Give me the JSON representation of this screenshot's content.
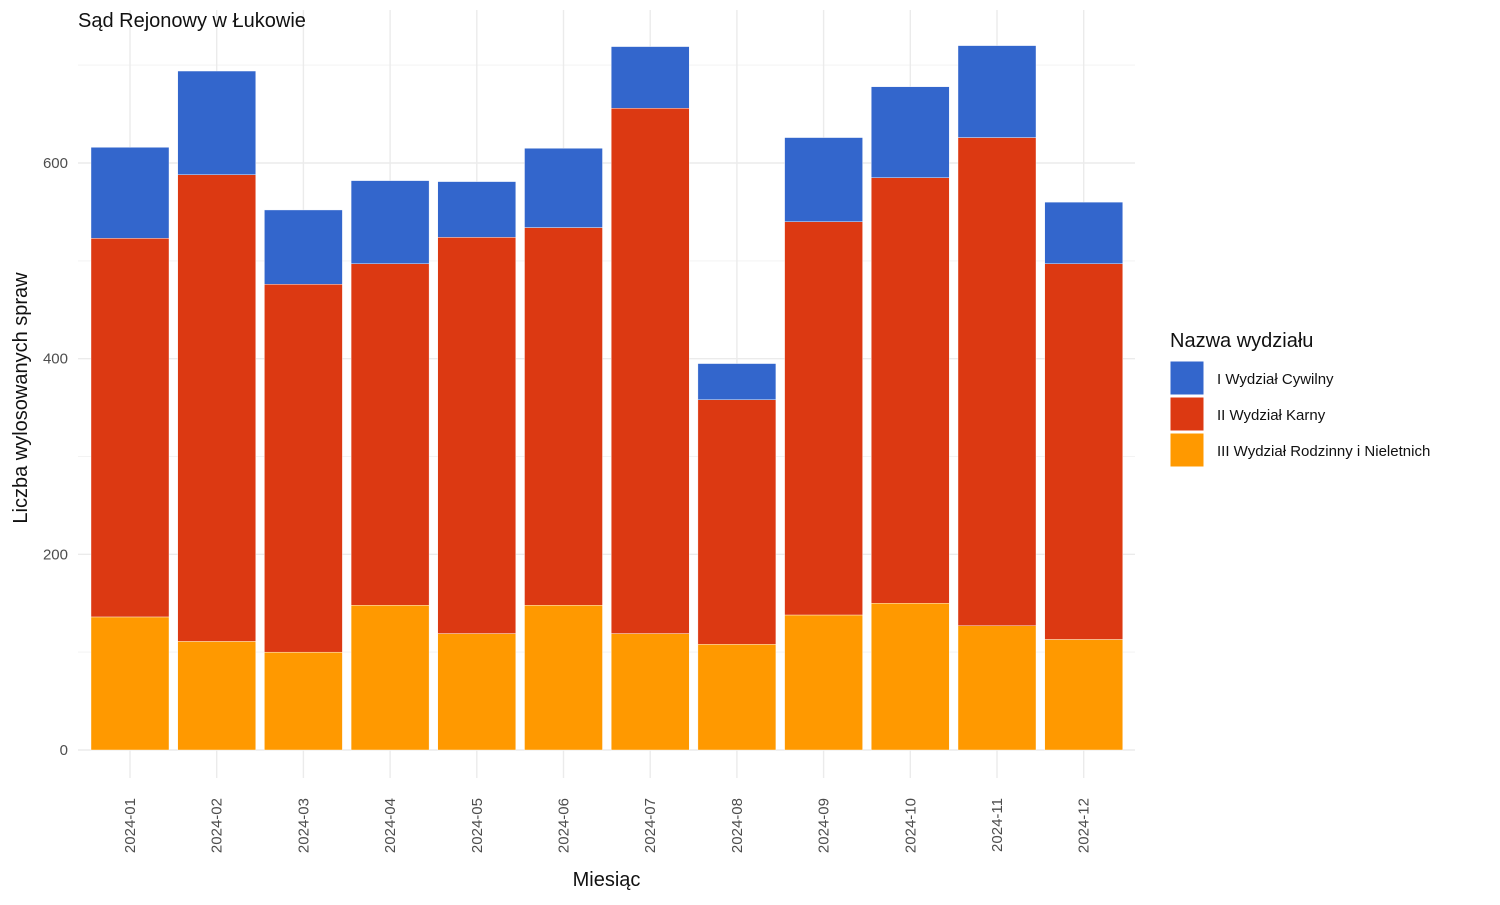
{
  "chart_data": {
    "type": "bar",
    "stacked": true,
    "title": "Sąd Rejonowy w Łukowie",
    "xlabel": "Miesiąc",
    "ylabel": "Liczba wylosowanych spraw",
    "ylim": [
      0,
      720
    ],
    "yticks": [
      0,
      200,
      400,
      600
    ],
    "grid": true,
    "legend": {
      "title": "Nazwa wydziału",
      "position": "right"
    },
    "categories": [
      "2024-01",
      "2024-02",
      "2024-03",
      "2024-04",
      "2024-05",
      "2024-06",
      "2024-07",
      "2024-08",
      "2024-09",
      "2024-10",
      "2024-11",
      "2024-12"
    ],
    "series": [
      {
        "name": "III Wydział Rodzinny i Nieletnich",
        "color": "#FF9900",
        "values": [
          136,
          111,
          100,
          148,
          119,
          148,
          119,
          108,
          138,
          150,
          127,
          113
        ]
      },
      {
        "name": "II Wydział Karny",
        "color": "#DC3912",
        "values": [
          387,
          477,
          376,
          349,
          405,
          386,
          537,
          250,
          402,
          435,
          499,
          384
        ]
      },
      {
        "name": "I Wydział Cywilny",
        "color": "#3366CC",
        "values": [
          93,
          106,
          76,
          85,
          57,
          81,
          63,
          37,
          86,
          93,
          94,
          63
        ]
      }
    ]
  }
}
